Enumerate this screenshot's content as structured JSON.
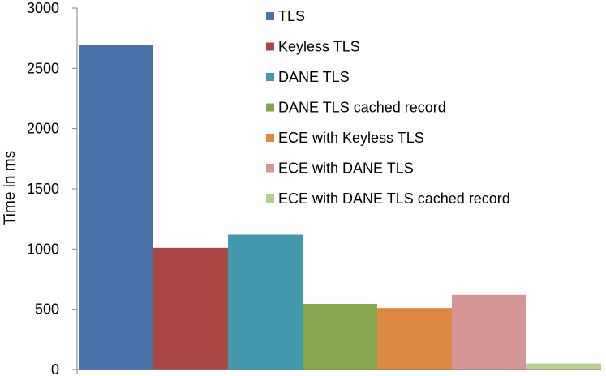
{
  "chart_data": {
    "type": "bar",
    "title": "",
    "xlabel": "",
    "ylabel": "Time in ms",
    "ylim": [
      0,
      3000
    ],
    "yticks": [
      0,
      500,
      1000,
      1500,
      2000,
      2500,
      3000
    ],
    "grid": false,
    "legend_position": "top-right",
    "series": [
      {
        "name": "TLS",
        "value": 2695,
        "color": "#4a72aa"
      },
      {
        "name": "Keyless TLS",
        "value": 1010,
        "color": "#aa4745"
      },
      {
        "name": "DANE TLS",
        "value": 1120,
        "color": "#4299ad"
      },
      {
        "name": "DANE TLS cached record",
        "value": 545,
        "color": "#88a64e"
      },
      {
        "name": "ECE with Keyless TLS",
        "value": 510,
        "color": "#dc8840"
      },
      {
        "name": "ECE with DANE TLS",
        "value": 620,
        "color": "#d69696"
      },
      {
        "name": "ECE with DANE TLS cached record",
        "value": 50,
        "color": "#b7cf8f"
      }
    ]
  }
}
